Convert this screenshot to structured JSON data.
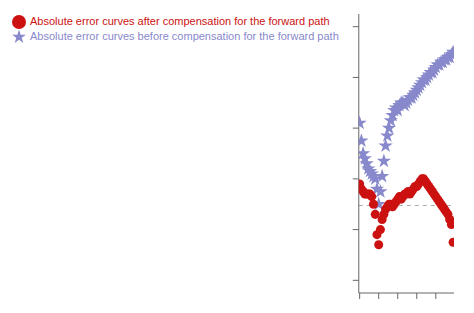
{
  "chart_data": {
    "type": "scatter",
    "x": [
      0,
      1,
      2,
      3,
      4,
      5,
      6,
      7,
      8,
      9,
      10,
      11,
      12,
      13,
      14,
      15,
      16,
      17,
      18,
      19,
      20,
      21,
      22,
      23,
      24,
      25,
      26,
      27,
      28,
      29,
      30,
      31,
      32,
      33,
      34,
      35,
      36,
      37,
      38,
      39,
      40,
      41,
      42,
      43,
      44,
      45,
      46,
      47,
      48,
      49,
      50,
      51,
      52,
      53,
      54
    ],
    "series": [
      {
        "name": "Absolute error curves before compensation for the forward path",
        "color": "#8888cc",
        "marker": "star",
        "values": [
          0.62,
          0.55,
          0.5,
          0.48,
          0.46,
          0.44,
          0.43,
          0.42,
          0.41,
          0.4,
          0.36,
          0.3,
          0.35,
          0.41,
          0.47,
          0.53,
          0.57,
          0.6,
          0.63,
          0.65,
          0.67,
          0.68,
          0.67,
          0.69,
          0.7,
          0.7,
          0.69,
          0.7,
          0.71,
          0.72,
          0.72,
          0.73,
          0.74,
          0.75,
          0.76,
          0.77,
          0.78,
          0.79,
          0.79,
          0.8,
          0.81,
          0.82,
          0.82,
          0.83,
          0.84,
          0.85,
          0.85,
          0.86,
          0.86,
          0.87,
          0.87,
          0.88,
          0.88,
          0.89,
          0.9
        ]
      },
      {
        "name": "Absolute error curves after compensation for the forward path",
        "color": "#cc1111",
        "marker": "circle",
        "values": [
          0.38,
          0.36,
          0.35,
          0.34,
          0.34,
          0.34,
          0.34,
          0.33,
          0.3,
          0.26,
          0.18,
          0.14,
          0.2,
          0.24,
          0.26,
          0.28,
          0.29,
          0.3,
          0.3,
          0.29,
          0.3,
          0.31,
          0.32,
          0.33,
          0.32,
          0.33,
          0.34,
          0.34,
          0.35,
          0.34,
          0.35,
          0.36,
          0.37,
          0.37,
          0.38,
          0.39,
          0.4,
          0.4,
          0.39,
          0.38,
          0.37,
          0.36,
          0.35,
          0.34,
          0.33,
          0.32,
          0.31,
          0.3,
          0.29,
          0.28,
          0.27,
          0.26,
          0.24,
          0.22,
          0.15
        ]
      }
    ],
    "reference_line": {
      "y": 0.295,
      "color": "#aaaaaa",
      "line_style": "dashed"
    },
    "xlim": [
      -0.5,
      54.5
    ],
    "ylim": [
      -0.05,
      1.05
    ],
    "xticks": [
      0,
      11,
      22,
      33,
      44
    ],
    "yticks": [
      0.0,
      0.2,
      0.4,
      0.6,
      0.8,
      1.0
    ],
    "tick_labels": false,
    "grid": false,
    "legend": "upper left"
  }
}
